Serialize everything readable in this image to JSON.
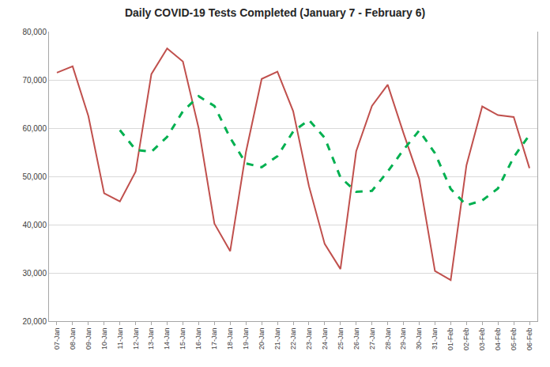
{
  "chart_data": {
    "type": "line",
    "title": "Daily COVID-19 Tests Completed (January 7 - February 6)",
    "categories": [
      "07-Jan",
      "08-Jan",
      "09-Jan",
      "10-Jan",
      "11-Jan",
      "12-Jan",
      "13-Jan",
      "14-Jan",
      "15-Jan",
      "16-Jan",
      "17-Jan",
      "18-Jan",
      "19-Jan",
      "20-Jan",
      "21-Jan",
      "22-Jan",
      "23-Jan",
      "24-Jan",
      "25-Jan",
      "26-Jan",
      "27-Jan",
      "28-Jan",
      "29-Jan",
      "30-Jan",
      "31-Jan",
      "01-Feb",
      "02-Feb",
      "03-Feb",
      "04-Feb",
      "05-Feb",
      "06-Feb"
    ],
    "series": [
      {
        "color": "#c0504d",
        "line_style": "solid",
        "values": [
          71500,
          72800,
          62500,
          46500,
          44800,
          51000,
          71200,
          76500,
          73800,
          60000,
          40200,
          34500,
          55000,
          70200,
          71700,
          63500,
          48000,
          36000,
          30800,
          55200,
          64600,
          69000,
          59000,
          49500,
          30400,
          28500,
          52300,
          64500,
          62700,
          62300,
          51700
        ]
      },
      {
        "color": "#00b050",
        "line_style": "dashed",
        "values": [
          null,
          null,
          null,
          null,
          59600,
          55500,
          55100,
          58200,
          63500,
          66600,
          64600,
          58000,
          52700,
          51900,
          54200,
          59300,
          61700,
          58000,
          49800,
          46800,
          47000,
          51000,
          55500,
          59500,
          54800,
          47400,
          44000,
          45000,
          47500,
          54000,
          58600
        ]
      }
    ],
    "ylim": [
      20000,
      80000
    ],
    "yticks": [
      {
        "value": 20000,
        "label": "20,000"
      },
      {
        "value": 30000,
        "label": "30,000"
      },
      {
        "value": 40000,
        "label": "40,000"
      },
      {
        "value": 50000,
        "label": "50,000"
      },
      {
        "value": 60000,
        "label": "60,000"
      },
      {
        "value": 70000,
        "label": "70,000"
      },
      {
        "value": 80000,
        "label": "80,000"
      }
    ],
    "grid": true
  }
}
